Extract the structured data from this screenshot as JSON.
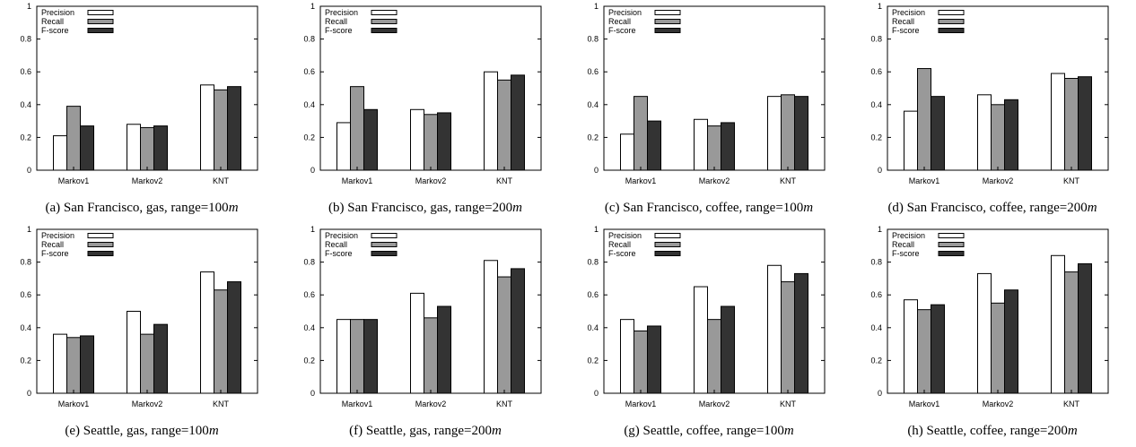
{
  "legend": [
    "Precision",
    "Recall",
    "F-score"
  ],
  "colors": {
    "Precision": "#ffffff",
    "Recall": "#999999",
    "F-score": "#333333"
  },
  "chart_data": [
    {
      "type": "bar",
      "label": "(a)",
      "caption": "San Francisco, gas, range=100",
      "unit": "m",
      "categories": [
        "Markov1",
        "Markov2",
        "KNT"
      ],
      "ylim": [
        0,
        1
      ],
      "yticks": [
        0,
        0.2,
        0.4,
        0.6,
        0.8,
        1
      ],
      "series": [
        {
          "name": "Precision",
          "values": [
            0.21,
            0.28,
            0.52
          ]
        },
        {
          "name": "Recall",
          "values": [
            0.39,
            0.26,
            0.49
          ]
        },
        {
          "name": "F-score",
          "values": [
            0.27,
            0.27,
            0.51
          ]
        }
      ]
    },
    {
      "type": "bar",
      "label": "(b)",
      "caption": "San Francisco, gas, range=200",
      "unit": "m",
      "categories": [
        "Markov1",
        "Markov2",
        "KNT"
      ],
      "ylim": [
        0,
        1
      ],
      "yticks": [
        0,
        0.2,
        0.4,
        0.6,
        0.8,
        1
      ],
      "series": [
        {
          "name": "Precision",
          "values": [
            0.29,
            0.37,
            0.6
          ]
        },
        {
          "name": "Recall",
          "values": [
            0.51,
            0.34,
            0.55
          ]
        },
        {
          "name": "F-score",
          "values": [
            0.37,
            0.35,
            0.58
          ]
        }
      ]
    },
    {
      "type": "bar",
      "label": "(c)",
      "caption": "San Francisco, coffee, range=100",
      "unit": "m",
      "categories": [
        "Markov1",
        "Markov2",
        "KNT"
      ],
      "ylim": [
        0,
        1
      ],
      "yticks": [
        0,
        0.2,
        0.4,
        0.6,
        0.8,
        1
      ],
      "series": [
        {
          "name": "Precision",
          "values": [
            0.22,
            0.31,
            0.45
          ]
        },
        {
          "name": "Recall",
          "values": [
            0.45,
            0.27,
            0.46
          ]
        },
        {
          "name": "F-score",
          "values": [
            0.3,
            0.29,
            0.45
          ]
        }
      ]
    },
    {
      "type": "bar",
      "label": "(d)",
      "caption": "San Francisco, coffee, range=200",
      "unit": "m",
      "categories": [
        "Markov1",
        "Markov2",
        "KNT"
      ],
      "ylim": [
        0,
        1
      ],
      "yticks": [
        0,
        0.2,
        0.4,
        0.6,
        0.8,
        1
      ],
      "series": [
        {
          "name": "Precision",
          "values": [
            0.36,
            0.46,
            0.59
          ]
        },
        {
          "name": "Recall",
          "values": [
            0.62,
            0.4,
            0.56
          ]
        },
        {
          "name": "F-score",
          "values": [
            0.45,
            0.43,
            0.57
          ]
        }
      ]
    },
    {
      "type": "bar",
      "label": "(e)",
      "caption": "Seattle, gas, range=100",
      "unit": "m",
      "categories": [
        "Markov1",
        "Markov2",
        "KNT"
      ],
      "ylim": [
        0,
        1
      ],
      "yticks": [
        0,
        0.2,
        0.4,
        0.6,
        0.8,
        1
      ],
      "series": [
        {
          "name": "Precision",
          "values": [
            0.36,
            0.5,
            0.74
          ]
        },
        {
          "name": "Recall",
          "values": [
            0.34,
            0.36,
            0.63
          ]
        },
        {
          "name": "F-score",
          "values": [
            0.35,
            0.42,
            0.68
          ]
        }
      ]
    },
    {
      "type": "bar",
      "label": "(f)",
      "caption": "Seattle, gas, range=200",
      "unit": "m",
      "categories": [
        "Markov1",
        "Markov2",
        "KNT"
      ],
      "ylim": [
        0,
        1
      ],
      "yticks": [
        0,
        0.2,
        0.4,
        0.6,
        0.8,
        1
      ],
      "series": [
        {
          "name": "Precision",
          "values": [
            0.45,
            0.61,
            0.81
          ]
        },
        {
          "name": "Recall",
          "values": [
            0.45,
            0.46,
            0.71
          ]
        },
        {
          "name": "F-score",
          "values": [
            0.45,
            0.53,
            0.76
          ]
        }
      ]
    },
    {
      "type": "bar",
      "label": "(g)",
      "caption": "Seattle, coffee, range=100",
      "unit": "m",
      "categories": [
        "Markov1",
        "Markov2",
        "KNT"
      ],
      "ylim": [
        0,
        1
      ],
      "yticks": [
        0,
        0.2,
        0.4,
        0.6,
        0.8,
        1
      ],
      "series": [
        {
          "name": "Precision",
          "values": [
            0.45,
            0.65,
            0.78
          ]
        },
        {
          "name": "Recall",
          "values": [
            0.38,
            0.45,
            0.68
          ]
        },
        {
          "name": "F-score",
          "values": [
            0.41,
            0.53,
            0.73
          ]
        }
      ]
    },
    {
      "type": "bar",
      "label": "(h)",
      "caption": "Seattle, coffee, range=200",
      "unit": "m",
      "categories": [
        "Markov1",
        "Markov2",
        "KNT"
      ],
      "ylim": [
        0,
        1
      ],
      "yticks": [
        0,
        0.2,
        0.4,
        0.6,
        0.8,
        1
      ],
      "series": [
        {
          "name": "Precision",
          "values": [
            0.57,
            0.73,
            0.84
          ]
        },
        {
          "name": "Recall",
          "values": [
            0.51,
            0.55,
            0.74
          ]
        },
        {
          "name": "F-score",
          "values": [
            0.54,
            0.63,
            0.79
          ]
        }
      ]
    }
  ]
}
